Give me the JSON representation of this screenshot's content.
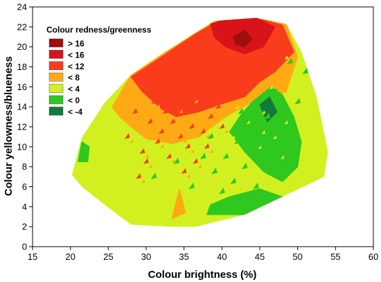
{
  "chart_data": {
    "type": "heatmap",
    "title": "",
    "xlabel": "Colour brightness (%)",
    "ylabel": "Colour yellowness/blueness",
    "xlim": [
      15,
      60
    ],
    "ylim": [
      0,
      24
    ],
    "x_ticks": [
      15,
      20,
      25,
      30,
      35,
      40,
      45,
      50,
      55,
      60
    ],
    "y_ticks": [
      0,
      2,
      4,
      6,
      8,
      10,
      12,
      14,
      16,
      18,
      20,
      22,
      24
    ],
    "grid": false,
    "legend": {
      "title": "Colour redness/greenness",
      "placement": "top-left",
      "items": [
        {
          "label": "> 16",
          "color": "#a00e0e"
        },
        {
          "label": "< 16",
          "color": "#d8141a"
        },
        {
          "label": "< 12",
          "color": "#f83c1c"
        },
        {
          "label": "< 8",
          "color": "#ffaa14"
        },
        {
          "label": "< 4",
          "color": "#d2f020"
        },
        {
          "label": "< 0",
          "color": "#2ec81e"
        },
        {
          "label": "< -4",
          "color": "#13793a"
        }
      ]
    },
    "hull": [
      [
        20.2,
        7.2
      ],
      [
        21.5,
        10.9
      ],
      [
        24.5,
        14.4
      ],
      [
        28.0,
        17.2
      ],
      [
        32.5,
        19.5
      ],
      [
        39.0,
        22.6
      ],
      [
        44.5,
        22.9
      ],
      [
        48.5,
        22.3
      ],
      [
        50.5,
        19.5
      ],
      [
        52.5,
        15.0
      ],
      [
        54.0,
        9.5
      ],
      [
        53.5,
        7.0
      ],
      [
        48.0,
        5.0
      ],
      [
        43.0,
        3.2
      ],
      [
        36.5,
        2.0
      ],
      [
        33.5,
        2.0
      ],
      [
        28.0,
        2.2
      ],
      [
        24.0,
        4.5
      ],
      [
        21.5,
        6.0
      ]
    ],
    "value_regions": [
      {
        "level": "< 4",
        "polygon": [
          [
            20.2,
            7.2
          ],
          [
            21.5,
            10.9
          ],
          [
            24.5,
            14.4
          ],
          [
            28.0,
            17.2
          ],
          [
            32.5,
            19.5
          ],
          [
            39.0,
            22.6
          ],
          [
            44.5,
            22.9
          ],
          [
            48.5,
            22.3
          ],
          [
            50.5,
            19.5
          ],
          [
            52.5,
            15.0
          ],
          [
            54.0,
            9.5
          ],
          [
            53.5,
            7.0
          ],
          [
            48.0,
            5.0
          ],
          [
            43.0,
            3.2
          ],
          [
            36.5,
            2.0
          ],
          [
            33.5,
            2.0
          ],
          [
            28.0,
            2.2
          ],
          [
            24.0,
            4.5
          ],
          [
            21.5,
            6.0
          ]
        ]
      },
      {
        "level": "< 8",
        "polygon": [
          [
            25.5,
            14.0
          ],
          [
            28.0,
            17.2
          ],
          [
            32.5,
            19.5
          ],
          [
            39.0,
            22.6
          ],
          [
            44.5,
            22.9
          ],
          [
            48.5,
            22.3
          ],
          [
            50.0,
            19.0
          ],
          [
            48.5,
            15.5
          ],
          [
            44.0,
            14.5
          ],
          [
            40.5,
            13.0
          ],
          [
            37.0,
            11.0
          ],
          [
            33.5,
            10.3
          ],
          [
            30.0,
            10.8
          ],
          [
            28.0,
            12.0
          ],
          [
            26.5,
            13.0
          ]
        ]
      },
      {
        "level": "< 12",
        "polygon": [
          [
            28.0,
            17.0
          ],
          [
            32.0,
            19.0
          ],
          [
            36.5,
            21.3
          ],
          [
            39.5,
            22.6
          ],
          [
            44.5,
            22.9
          ],
          [
            48.0,
            22.2
          ],
          [
            49.5,
            19.5
          ],
          [
            47.0,
            17.5
          ],
          [
            45.0,
            16.5
          ],
          [
            43.0,
            15.0
          ],
          [
            40.0,
            14.3
          ],
          [
            37.0,
            13.5
          ],
          [
            34.0,
            13.0
          ],
          [
            32.0,
            13.8
          ],
          [
            29.5,
            15.5
          ]
        ]
      },
      {
        "level": "< 16",
        "polygon": [
          [
            38.5,
            22.3
          ],
          [
            40.5,
            22.7
          ],
          [
            44.5,
            22.9
          ],
          [
            47.0,
            22.0
          ],
          [
            45.5,
            20.0
          ],
          [
            43.0,
            19.3
          ],
          [
            40.5,
            20.0
          ],
          [
            39.0,
            21.0
          ]
        ]
      },
      {
        "level": "> 16",
        "polygon": [
          [
            41.5,
            21.0
          ],
          [
            43.0,
            21.7
          ],
          [
            44.0,
            20.8
          ],
          [
            43.0,
            20.0
          ],
          [
            41.8,
            20.3
          ]
        ]
      },
      {
        "level": "< 0",
        "polygon": [
          [
            44.0,
            14.5
          ],
          [
            46.5,
            16.0
          ],
          [
            48.0,
            15.2
          ],
          [
            49.5,
            13.0
          ],
          [
            50.5,
            10.5
          ],
          [
            50.0,
            8.0
          ],
          [
            48.0,
            6.5
          ],
          [
            45.5,
            7.5
          ],
          [
            43.0,
            9.5
          ],
          [
            41.0,
            11.5
          ],
          [
            42.5,
            13.2
          ]
        ]
      },
      {
        "level": "< -4",
        "polygon": [
          [
            45.0,
            14.2
          ],
          [
            46.3,
            15.0
          ],
          [
            47.3,
            13.5
          ],
          [
            46.0,
            12.5
          ]
        ]
      },
      {
        "level": "< 0",
        "polygon": [
          [
            38.0,
            3.2
          ],
          [
            43.0,
            3.2
          ],
          [
            48.0,
            5.0
          ],
          [
            45.0,
            5.8
          ],
          [
            41.0,
            5.0
          ],
          [
            38.5,
            4.2
          ]
        ]
      },
      {
        "level": "< 0",
        "polygon": [
          [
            21.0,
            8.5
          ],
          [
            22.3,
            8.5
          ],
          [
            22.5,
            10.0
          ],
          [
            21.5,
            10.5
          ]
        ]
      },
      {
        "level": "< 8",
        "polygon": [
          [
            33.4,
            2.8
          ],
          [
            34.4,
            5.8
          ],
          [
            35.2,
            3.4
          ]
        ]
      }
    ],
    "scatter_speckle_red": [
      [
        30.5,
        12.5
      ],
      [
        32.0,
        11.5
      ],
      [
        33.5,
        12.5
      ],
      [
        31.5,
        10.5
      ],
      [
        34.5,
        11.0
      ],
      [
        36.0,
        12.0
      ],
      [
        29.5,
        9.5
      ],
      [
        33.0,
        9.0
      ],
      [
        35.5,
        10.0
      ],
      [
        37.5,
        11.5
      ],
      [
        38.5,
        13.0
      ],
      [
        32.5,
        13.5
      ],
      [
        27.5,
        11.0
      ],
      [
        30.0,
        8.5
      ],
      [
        36.5,
        8.5
      ],
      [
        38.0,
        10.0
      ],
      [
        40.0,
        12.0
      ],
      [
        34.0,
        14.0
      ],
      [
        31.0,
        14.5
      ],
      [
        28.5,
        13.5
      ],
      [
        36.0,
        15.0
      ],
      [
        39.5,
        14.0
      ],
      [
        29.0,
        7.0
      ],
      [
        35.0,
        7.5
      ]
    ],
    "scatter_speckle_green": [
      [
        42.0,
        10.5
      ],
      [
        44.0,
        12.0
      ],
      [
        46.0,
        11.0
      ],
      [
        40.5,
        9.0
      ],
      [
        43.0,
        8.0
      ],
      [
        45.5,
        9.5
      ],
      [
        47.5,
        10.5
      ],
      [
        39.0,
        7.5
      ],
      [
        37.5,
        9.0
      ],
      [
        41.5,
        6.5
      ],
      [
        44.5,
        6.0
      ],
      [
        48.5,
        8.5
      ],
      [
        42.5,
        13.5
      ],
      [
        49.0,
        12.0
      ],
      [
        38.5,
        11.0
      ],
      [
        34.0,
        8.5
      ],
      [
        31.0,
        7.0
      ],
      [
        46.0,
        13.0
      ],
      [
        40.0,
        5.5
      ],
      [
        36.0,
        6.0
      ],
      [
        50.0,
        14.5
      ],
      [
        47.0,
        15.5
      ],
      [
        51.0,
        17.5
      ],
      [
        49.0,
        18.5
      ]
    ]
  }
}
